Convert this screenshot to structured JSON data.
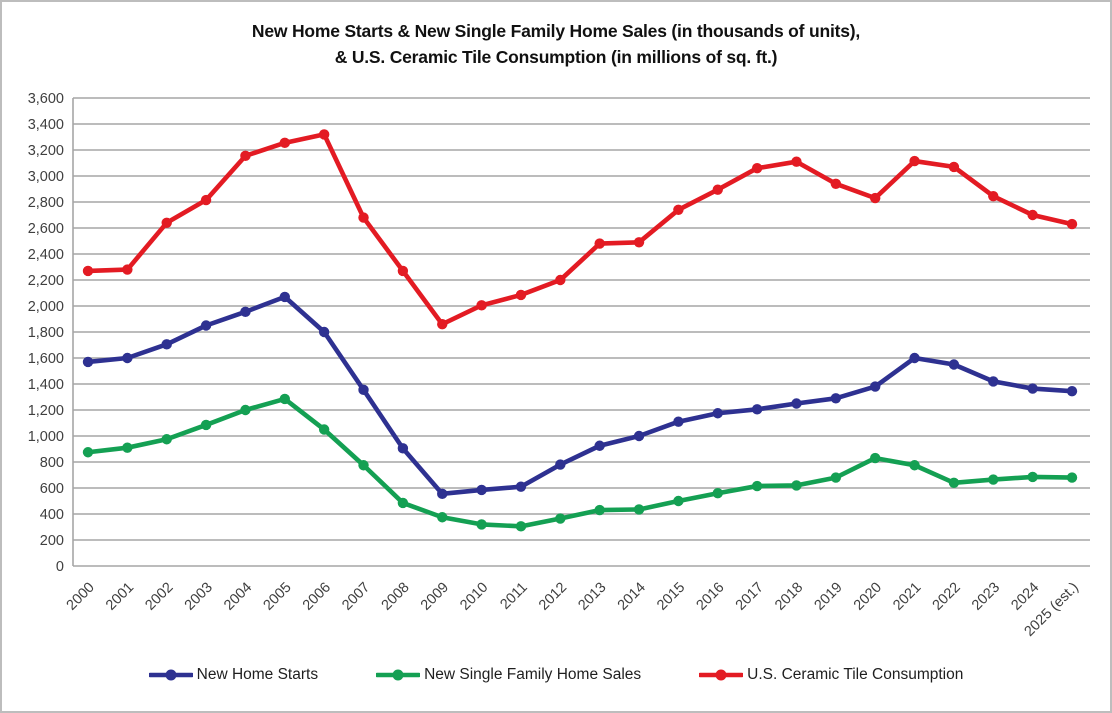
{
  "title": {
    "line1": "New Home Starts & New Single Family Home Sales (in thousands of units),",
    "line2": "& U.S. Ceramic Tile Consumption (in millions of sq. ft.)"
  },
  "chart_data": {
    "type": "line",
    "title": "New Home Starts & New Single Family Home Sales (in thousands of units), & U.S. Ceramic Tile Consumption (in millions of sq. ft.)",
    "categories": [
      "2000",
      "2001",
      "2002",
      "2003",
      "2004",
      "2005",
      "2006",
      "2007",
      "2008",
      "2009",
      "2010",
      "2011",
      "2012",
      "2013",
      "2014",
      "2015",
      "2016",
      "2017",
      "2018",
      "2019",
      "2020",
      "2021",
      "2022",
      "2023",
      "2024",
      "2025 (est.)"
    ],
    "series": [
      {
        "name": "New Home Starts",
        "color": "#2E3191",
        "values": [
          1570,
          1600,
          1705,
          1850,
          1955,
          2070,
          1800,
          1355,
          905,
          555,
          585,
          610,
          780,
          925,
          1000,
          1110,
          1175,
          1205,
          1250,
          1290,
          1380,
          1600,
          1550,
          1420,
          1365,
          1345
        ]
      },
      {
        "name": "New Single Family Home Sales",
        "color": "#14A053",
        "values": [
          875,
          910,
          975,
          1085,
          1200,
          1285,
          1050,
          775,
          485,
          375,
          320,
          305,
          365,
          430,
          435,
          500,
          560,
          615,
          620,
          680,
          830,
          775,
          640,
          665,
          685,
          680
        ]
      },
      {
        "name": "U.S. Ceramic Tile Consumption",
        "color": "#E31B23",
        "values": [
          2270,
          2280,
          2640,
          2815,
          3155,
          3255,
          3320,
          2680,
          2270,
          1860,
          2005,
          2085,
          2200,
          2480,
          2490,
          2740,
          2895,
          3060,
          3110,
          2940,
          2830,
          3115,
          3070,
          2845,
          2700,
          2630
        ]
      }
    ],
    "xlabel": "",
    "ylabel": "",
    "ylim": [
      0,
      3600
    ],
    "ytick_step": 200,
    "grid": true,
    "legend_position": "bottom",
    "gridline_color": "#A6A6A6",
    "axis_label_color": "#3F3F3F"
  }
}
